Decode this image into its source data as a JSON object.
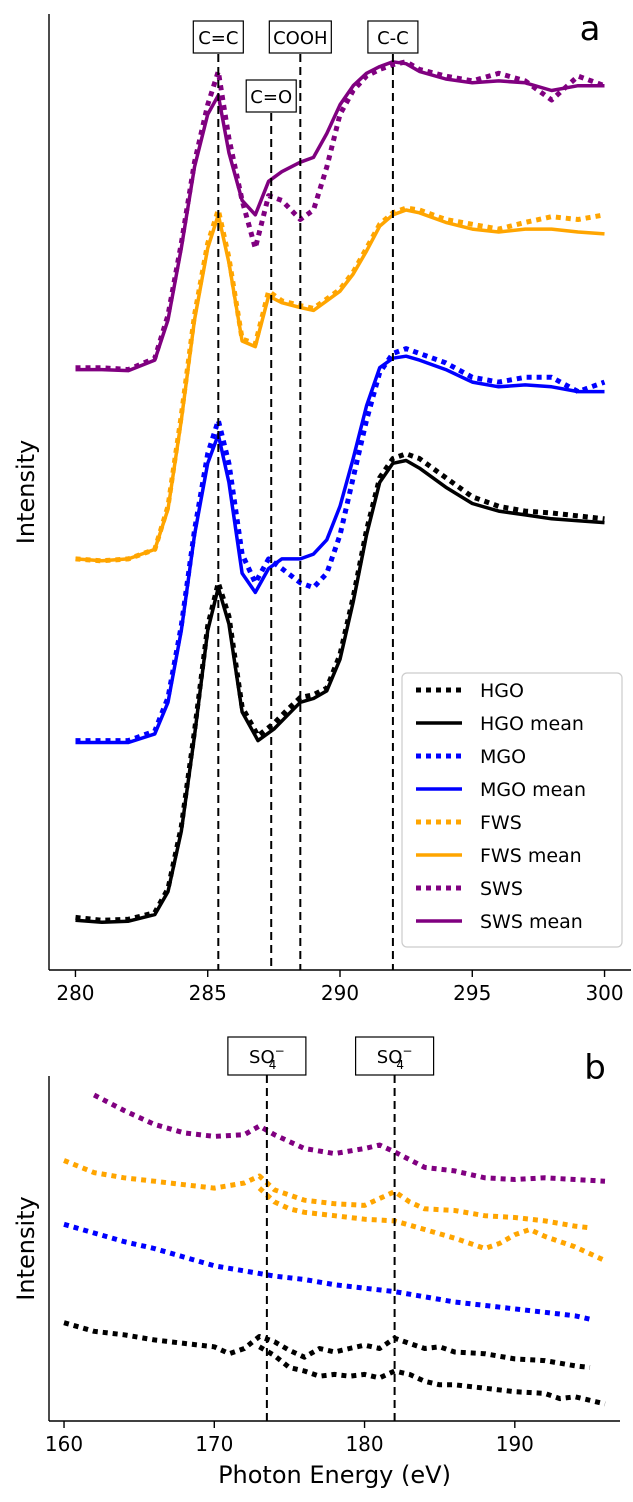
{
  "chart_data": [
    {
      "type": "line",
      "panel_label": "a",
      "ylabel": "Intensity",
      "xlim": [
        279,
        301
      ],
      "ylim": [
        0,
        10
      ],
      "x_ticks": [
        280,
        285,
        290,
        295,
        300
      ],
      "annotations": [
        {
          "label": "C=C",
          "x": 285.4
        },
        {
          "label": "C=O",
          "x": 287.4
        },
        {
          "label": "COOH",
          "x": 288.5
        },
        {
          "label": "C-C",
          "x": 292.0
        }
      ],
      "legend": {
        "position": "lower-right",
        "entries": [
          "HGO",
          "HGO mean",
          "MGO",
          "MGO mean",
          "FWS",
          "FWS mean",
          "SWS",
          "SWS mean"
        ]
      },
      "series": [
        {
          "name": "HGO",
          "style": "dotted",
          "color": "#000000",
          "x": [
            280,
            281,
            282,
            283,
            283.5,
            284,
            284.5,
            285,
            285.4,
            285.8,
            286.3,
            286.9,
            287.5,
            288,
            288.5,
            289,
            289.5,
            290,
            290.5,
            291,
            291.5,
            292,
            292.5,
            293,
            294,
            295,
            296,
            297,
            298,
            299,
            300
          ],
          "values": [
            0.55,
            0.52,
            0.53,
            0.6,
            0.85,
            1.5,
            2.5,
            3.6,
            4.05,
            3.7,
            2.75,
            2.45,
            2.58,
            2.72,
            2.85,
            2.88,
            2.95,
            3.3,
            3.9,
            4.6,
            5.15,
            5.35,
            5.4,
            5.35,
            5.15,
            4.95,
            4.85,
            4.8,
            4.78,
            4.75,
            4.72
          ]
        },
        {
          "name": "HGO mean",
          "style": "solid",
          "color": "#000000",
          "x": [
            280,
            281,
            282,
            283,
            283.5,
            284,
            284.5,
            285,
            285.4,
            285.8,
            286.3,
            286.9,
            287.5,
            288,
            288.5,
            289,
            289.5,
            290,
            290.5,
            291,
            291.5,
            292,
            292.5,
            293,
            294,
            295,
            296,
            297,
            298,
            299,
            300
          ],
          "values": [
            0.52,
            0.5,
            0.51,
            0.58,
            0.82,
            1.45,
            2.45,
            3.55,
            4.0,
            3.62,
            2.7,
            2.4,
            2.52,
            2.66,
            2.8,
            2.84,
            2.92,
            3.25,
            3.85,
            4.55,
            5.1,
            5.3,
            5.33,
            5.25,
            5.05,
            4.88,
            4.8,
            4.76,
            4.72,
            4.7,
            4.68
          ]
        },
        {
          "name": "MGO",
          "style": "dotted",
          "color": "#0000ff",
          "x": [
            280,
            281,
            282,
            283,
            283.5,
            284,
            284.5,
            285,
            285.4,
            285.8,
            286.3,
            286.8,
            287.3,
            287.8,
            288.5,
            289,
            289.5,
            290,
            290.5,
            291,
            291.5,
            292,
            292.5,
            293,
            294,
            295,
            296,
            297,
            298,
            299,
            300
          ],
          "values": [
            2.4,
            2.4,
            2.4,
            2.5,
            2.85,
            3.6,
            4.6,
            5.4,
            5.75,
            5.3,
            4.35,
            4.05,
            4.3,
            4.2,
            4.05,
            4.0,
            4.15,
            4.55,
            5.15,
            5.75,
            6.25,
            6.45,
            6.5,
            6.45,
            6.35,
            6.2,
            6.15,
            6.2,
            6.2,
            6.05,
            6.15
          ]
        },
        {
          "name": "MGO mean",
          "style": "solid",
          "color": "#0000ff",
          "x": [
            280,
            281,
            282,
            283,
            283.5,
            284,
            284.5,
            285,
            285.4,
            285.8,
            286.3,
            286.8,
            287.3,
            287.8,
            288.5,
            289,
            289.5,
            290,
            290.5,
            291,
            291.5,
            292,
            292.5,
            293,
            294,
            295,
            296,
            297,
            298,
            299,
            300
          ],
          "values": [
            2.38,
            2.38,
            2.38,
            2.47,
            2.8,
            3.55,
            4.55,
            5.3,
            5.6,
            5.1,
            4.15,
            3.95,
            4.2,
            4.3,
            4.3,
            4.35,
            4.5,
            4.85,
            5.35,
            5.9,
            6.3,
            6.4,
            6.42,
            6.38,
            6.28,
            6.15,
            6.1,
            6.12,
            6.1,
            6.05,
            6.05
          ]
        },
        {
          "name": "FWS",
          "style": "dotted",
          "color": "#ffa500",
          "x": [
            280,
            281,
            282,
            283,
            283.5,
            284,
            284.5,
            285,
            285.4,
            285.8,
            286.3,
            286.8,
            287.3,
            287.8,
            288.5,
            289,
            289.5,
            290,
            290.5,
            291,
            291.5,
            292,
            292.5,
            293,
            294,
            295,
            296,
            297,
            298,
            299,
            300
          ],
          "values": [
            4.3,
            4.28,
            4.3,
            4.4,
            4.85,
            5.8,
            6.85,
            7.6,
            7.95,
            7.45,
            6.6,
            6.55,
            7.1,
            7.0,
            6.95,
            6.92,
            7.02,
            7.12,
            7.3,
            7.55,
            7.8,
            7.92,
            7.97,
            7.95,
            7.85,
            7.8,
            7.75,
            7.82,
            7.88,
            7.85,
            7.9
          ]
        },
        {
          "name": "FWS mean",
          "style": "solid",
          "color": "#ffa500",
          "x": [
            280,
            281,
            282,
            283,
            283.5,
            284,
            284.5,
            285,
            285.4,
            285.8,
            286.3,
            286.8,
            287.3,
            287.8,
            288.5,
            289,
            289.5,
            290,
            290.5,
            291,
            291.5,
            292,
            292.5,
            293,
            294,
            295,
            296,
            297,
            298,
            299,
            300
          ],
          "values": [
            4.3,
            4.28,
            4.3,
            4.4,
            4.82,
            5.75,
            6.8,
            7.55,
            7.9,
            7.4,
            6.58,
            6.52,
            7.05,
            6.98,
            6.93,
            6.9,
            7.0,
            7.1,
            7.28,
            7.52,
            7.78,
            7.9,
            7.95,
            7.92,
            7.82,
            7.75,
            7.72,
            7.75,
            7.75,
            7.72,
            7.7
          ]
        },
        {
          "name": "SWS",
          "style": "dotted",
          "color": "#800080",
          "x": [
            280,
            281,
            282,
            283,
            283.5,
            284,
            284.5,
            285,
            285.4,
            285.8,
            286.3,
            286.8,
            287.3,
            287.8,
            288.5,
            289,
            289.5,
            290,
            290.5,
            291,
            291.5,
            292,
            292.5,
            293,
            294,
            295,
            296,
            297,
            298,
            299,
            300
          ],
          "values": [
            6.3,
            6.3,
            6.28,
            6.4,
            6.85,
            7.6,
            8.45,
            9.05,
            9.4,
            8.7,
            8.05,
            7.55,
            8.1,
            8.05,
            7.85,
            7.95,
            8.4,
            8.95,
            9.2,
            9.35,
            9.42,
            9.47,
            9.5,
            9.42,
            9.35,
            9.3,
            9.38,
            9.3,
            9.1,
            9.35,
            9.25
          ]
        },
        {
          "name": "SWS mean",
          "style": "solid",
          "color": "#800080",
          "x": [
            280,
            281,
            282,
            283,
            283.5,
            284,
            284.5,
            285,
            285.4,
            285.8,
            286.3,
            286.8,
            287.3,
            287.8,
            288.5,
            289,
            289.5,
            290,
            290.5,
            291,
            291.5,
            292,
            292.5,
            293,
            294,
            295,
            296,
            297,
            298,
            299,
            300
          ],
          "values": [
            6.28,
            6.28,
            6.27,
            6.38,
            6.8,
            7.55,
            8.4,
            8.95,
            9.15,
            8.55,
            8.05,
            7.9,
            8.25,
            8.35,
            8.45,
            8.5,
            8.75,
            9.05,
            9.25,
            9.38,
            9.45,
            9.5,
            9.48,
            9.4,
            9.32,
            9.28,
            9.3,
            9.28,
            9.2,
            9.25,
            9.25
          ]
        }
      ]
    },
    {
      "type": "line",
      "panel_label": "b",
      "xlabel": "Photon Energy (eV)",
      "ylabel": "Intensity",
      "xlim": [
        159,
        197
      ],
      "ylim": [
        0,
        10
      ],
      "x_ticks": [
        160,
        170,
        180,
        190
      ],
      "annotations": [
        {
          "label": "SO42−",
          "x": 173.5
        },
        {
          "label": "SO42−",
          "x": 182.0
        }
      ],
      "series": [
        {
          "name": "HGO",
          "style": "dotted",
          "color": "#000000",
          "x": [
            160,
            162,
            164,
            166,
            168,
            170,
            171,
            172,
            173,
            174,
            175,
            176,
            177,
            178,
            179,
            180,
            181,
            182,
            183,
            184,
            185,
            186,
            188,
            190,
            192,
            194,
            195
          ],
          "values": [
            2.85,
            2.6,
            2.5,
            2.35,
            2.25,
            2.15,
            1.95,
            2.1,
            2.45,
            2.3,
            2.05,
            1.85,
            2.1,
            2.0,
            2.1,
            2.2,
            2.1,
            2.4,
            2.25,
            2.1,
            2.15,
            2.0,
            1.95,
            1.8,
            1.75,
            1.6,
            1.55
          ]
        },
        {
          "name": "HGO",
          "style": "dotted",
          "color": "#000000",
          "x": [
            173,
            174,
            175,
            176,
            177,
            178,
            179,
            180,
            181,
            182,
            183,
            184,
            185,
            186,
            188,
            190,
            192,
            193,
            194,
            195,
            196
          ],
          "values": [
            2.15,
            1.9,
            1.55,
            1.45,
            1.3,
            1.35,
            1.3,
            1.35,
            1.25,
            1.45,
            1.35,
            1.15,
            1.05,
            1.05,
            0.95,
            0.85,
            0.8,
            0.65,
            0.7,
            0.6,
            0.5
          ]
        },
        {
          "name": "MGO",
          "style": "dotted",
          "color": "#0000ff",
          "x": [
            160,
            162,
            164,
            166,
            168,
            170,
            172,
            174,
            176,
            178,
            180,
            182,
            184,
            186,
            188,
            190,
            192,
            194,
            195
          ],
          "values": [
            5.7,
            5.45,
            5.2,
            5.0,
            4.75,
            4.5,
            4.35,
            4.2,
            4.1,
            3.95,
            3.85,
            3.75,
            3.6,
            3.45,
            3.35,
            3.25,
            3.15,
            3.05,
            2.95
          ]
        },
        {
          "name": "FWS",
          "style": "dotted",
          "color": "#ffa500",
          "x": [
            160,
            162,
            164,
            166,
            168,
            170,
            172,
            173,
            174,
            175,
            176,
            178,
            180,
            181,
            182,
            183,
            184,
            186,
            188,
            190,
            192,
            194,
            195
          ],
          "values": [
            7.55,
            7.2,
            7.05,
            6.95,
            6.85,
            6.75,
            6.9,
            7.1,
            6.7,
            6.55,
            6.4,
            6.3,
            6.25,
            6.45,
            6.65,
            6.35,
            6.15,
            6.1,
            5.95,
            5.9,
            5.8,
            5.65,
            5.6
          ]
        },
        {
          "name": "FWS",
          "style": "dotted",
          "color": "#ffa500",
          "x": [
            173,
            174,
            175,
            176,
            178,
            180,
            182,
            184,
            186,
            188,
            189,
            190,
            191,
            192,
            194,
            196
          ],
          "values": [
            6.75,
            6.35,
            6.15,
            6.05,
            5.95,
            5.85,
            5.8,
            5.55,
            5.3,
            5.0,
            5.15,
            5.4,
            5.55,
            5.35,
            5.05,
            4.65
          ]
        },
        {
          "name": "SWS",
          "style": "dotted",
          "color": "#800080",
          "x": [
            162,
            164,
            166,
            168,
            170,
            172,
            173,
            174,
            176,
            178,
            180,
            181,
            182,
            184,
            186,
            188,
            190,
            192,
            194,
            196
          ],
          "values": [
            9.45,
            9.0,
            8.6,
            8.35,
            8.25,
            8.3,
            8.55,
            8.3,
            7.9,
            7.75,
            7.9,
            8.0,
            7.8,
            7.35,
            7.25,
            7.05,
            7.0,
            7.05,
            7.0,
            6.95
          ]
        }
      ]
    }
  ]
}
